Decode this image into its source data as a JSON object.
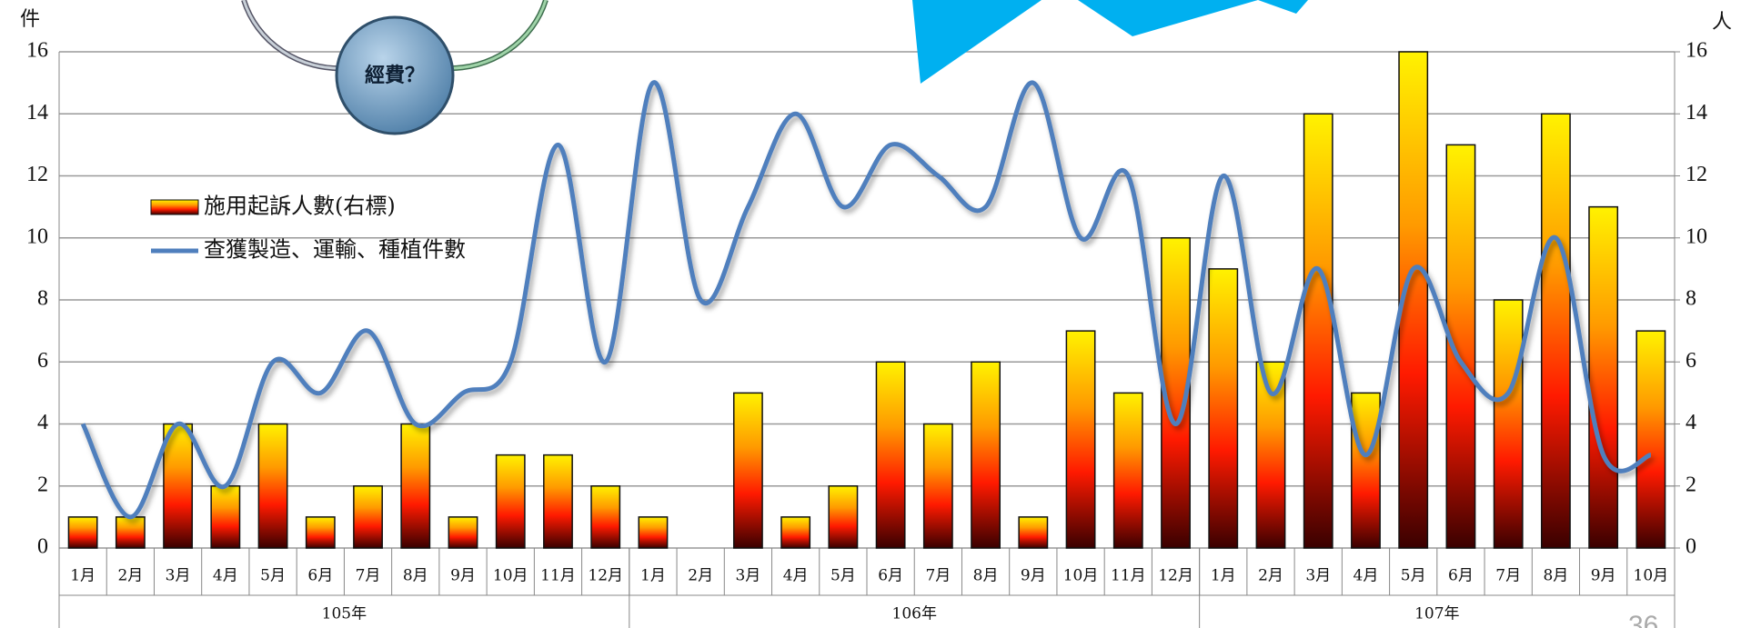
{
  "chart_data": {
    "type": "bar-line",
    "y_label": "件",
    "y2_label": "人",
    "annotation": "經費？",
    "page_number": "36",
    "category_groups": [
      {
        "label": "105年",
        "categories": [
          "1月",
          "2月",
          "3月",
          "4月",
          "5月",
          "6月",
          "7月",
          "8月",
          "9月",
          "10月",
          "11月",
          "12月"
        ]
      },
      {
        "label": "106年",
        "categories": [
          "1月",
          "2月",
          "3月",
          "4月",
          "5月",
          "6月",
          "7月",
          "8月",
          "9月",
          "10月",
          "11月",
          "12月"
        ]
      },
      {
        "label": "107年",
        "categories": [
          "1月",
          "2月",
          "3月",
          "4月",
          "5月",
          "6月",
          "7月",
          "8月",
          "9月",
          "10月"
        ]
      }
    ],
    "series": [
      {
        "name": "施用起訴人數(右標)",
        "type": "bar",
        "axis": "y2",
        "color": "#ff8c00",
        "values": [
          1,
          1,
          4,
          2,
          4,
          1,
          2,
          4,
          1,
          3,
          3,
          2,
          1,
          0,
          5,
          1,
          2,
          6,
          4,
          6,
          1,
          7,
          5,
          10,
          9,
          6,
          14,
          5,
          16,
          13,
          8,
          14,
          11,
          7
        ]
      },
      {
        "name": "查獲製造、運輸、種植件數",
        "type": "line",
        "axis": "y",
        "color": "#4f7fbd",
        "values": [
          4,
          1,
          4,
          2,
          6,
          5,
          7,
          4,
          5,
          6,
          13,
          6,
          15,
          8,
          11,
          14,
          11,
          13,
          12,
          11,
          15,
          10,
          12,
          4,
          12,
          5,
          9,
          3,
          9,
          6,
          5,
          10,
          3,
          3
        ]
      }
    ],
    "ylim": [
      0,
      16
    ],
    "yticks": [
      0,
      2,
      4,
      6,
      8,
      10,
      12,
      14,
      16
    ],
    "y2lim": [
      0,
      16
    ],
    "y2ticks": [
      0,
      2,
      4,
      6,
      8,
      10,
      12,
      14,
      16
    ],
    "grid": true
  }
}
